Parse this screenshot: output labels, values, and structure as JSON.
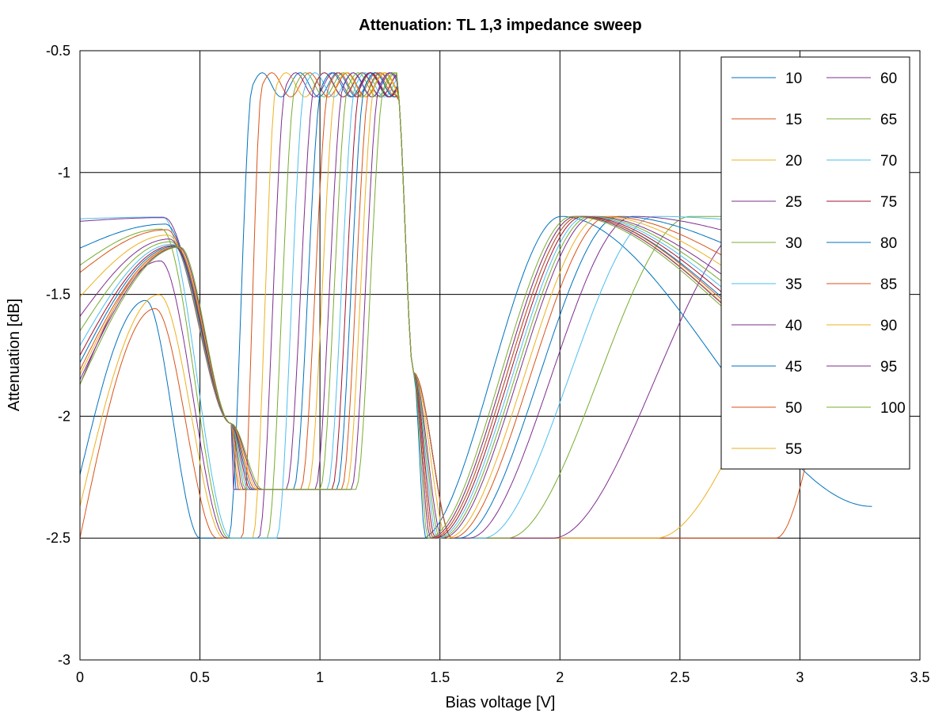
{
  "chart_data": {
    "type": "line",
    "title": "Attenuation: TL 1,3 impedance sweep",
    "xlabel": "Bias voltage [V]",
    "ylabel": "Attenuation [dB]",
    "xlim": [
      0,
      3.5
    ],
    "ylim": [
      -3,
      -0.5
    ],
    "xticks": [
      0,
      0.5,
      1,
      1.5,
      2,
      2.5,
      3,
      3.5
    ],
    "xtick_labels": [
      "0",
      "0.5",
      "1",
      "1.5",
      "2",
      "2.5",
      "3",
      "3.5"
    ],
    "yticks": [
      -0.5,
      -1,
      -1.5,
      -2,
      -2.5,
      -3
    ],
    "ytick_labels": [
      "-0.5",
      "-1",
      "-1.5",
      "-2",
      "-2.5",
      "-3"
    ],
    "grid": true,
    "legend_position": "top-right",
    "legend_columns": 2,
    "x_range": [
      0,
      3.3
    ],
    "series": [
      {
        "name": "10",
        "color": "#0072bd",
        "start": -2.24,
        "dip1": 0.5,
        "peak": 0.72,
        "dip2": 1.42,
        "end": -2.37
      },
      {
        "name": "15",
        "color": "#d95319",
        "start": -2.5,
        "dip1": 0.57,
        "peak": 0.76,
        "dip2": 2.9,
        "end": -2.48
      },
      {
        "name": "20",
        "color": "#edb120",
        "start": -2.37,
        "dip1": 0.6,
        "peak": 0.82,
        "dip2": 2.4,
        "end": -2.0
      },
      {
        "name": "25",
        "color": "#7e2f8e",
        "start": -1.87,
        "dip1": 0.61,
        "peak": 0.86,
        "dip2": 1.97,
        "end": -1.4
      },
      {
        "name": "30",
        "color": "#77ac30",
        "start": -1.38,
        "dip1": 0.62,
        "peak": 0.9,
        "dip2": 1.78,
        "end": -1.18
      },
      {
        "name": "35",
        "color": "#4dbeee",
        "start": -1.19,
        "dip1": 0.63,
        "peak": 0.94,
        "dip2": 1.68,
        "end": -1.23
      },
      {
        "name": "40",
        "color": "#7e2f8e",
        "start": -1.2,
        "dip1": 0.64,
        "peak": 0.98,
        "dip2": 1.62,
        "end": -1.36
      },
      {
        "name": "45",
        "color": "#0072bd",
        "start": -1.31,
        "dip1": 0.65,
        "peak": 1.01,
        "dip2": 1.58,
        "end": -1.48
      },
      {
        "name": "50",
        "color": "#d95319",
        "start": -1.41,
        "dip1": 0.66,
        "peak": 1.04,
        "dip2": 1.55,
        "end": -1.58
      },
      {
        "name": "55",
        "color": "#edb120",
        "start": -1.51,
        "dip1": 0.67,
        "peak": 1.07,
        "dip2": 1.53,
        "end": -1.66
      },
      {
        "name": "60",
        "color": "#7e2f8e",
        "start": -1.59,
        "dip1": 0.68,
        "peak": 1.1,
        "dip2": 1.51,
        "end": -1.72
      },
      {
        "name": "65",
        "color": "#77ac30",
        "start": -1.65,
        "dip1": 0.69,
        "peak": 1.12,
        "dip2": 1.5,
        "end": -1.77
      },
      {
        "name": "70",
        "color": "#4dbeee",
        "start": -1.71,
        "dip1": 0.7,
        "peak": 1.15,
        "dip2": 1.49,
        "end": -1.81
      },
      {
        "name": "75",
        "color": "#a2142f",
        "start": -1.75,
        "dip1": 0.71,
        "peak": 1.17,
        "dip2": 1.48,
        "end": -1.84
      },
      {
        "name": "80",
        "color": "#0072bd",
        "start": -1.78,
        "dip1": 0.72,
        "peak": 1.19,
        "dip2": 1.47,
        "end": -1.87
      },
      {
        "name": "85",
        "color": "#d95319",
        "start": -1.81,
        "dip1": 0.73,
        "peak": 1.21,
        "dip2": 1.47,
        "end": -1.89
      },
      {
        "name": "90",
        "color": "#edb120",
        "start": -1.83,
        "dip1": 0.74,
        "peak": 1.23,
        "dip2": 1.46,
        "end": -1.9
      },
      {
        "name": "95",
        "color": "#7e2f8e",
        "start": -1.85,
        "dip1": 0.75,
        "peak": 1.25,
        "dip2": 1.46,
        "end": -1.91
      },
      {
        "name": "100",
        "color": "#77ac30",
        "start": -1.87,
        "dip1": 0.76,
        "peak": 1.27,
        "dip2": 1.45,
        "end": -1.92
      }
    ]
  }
}
